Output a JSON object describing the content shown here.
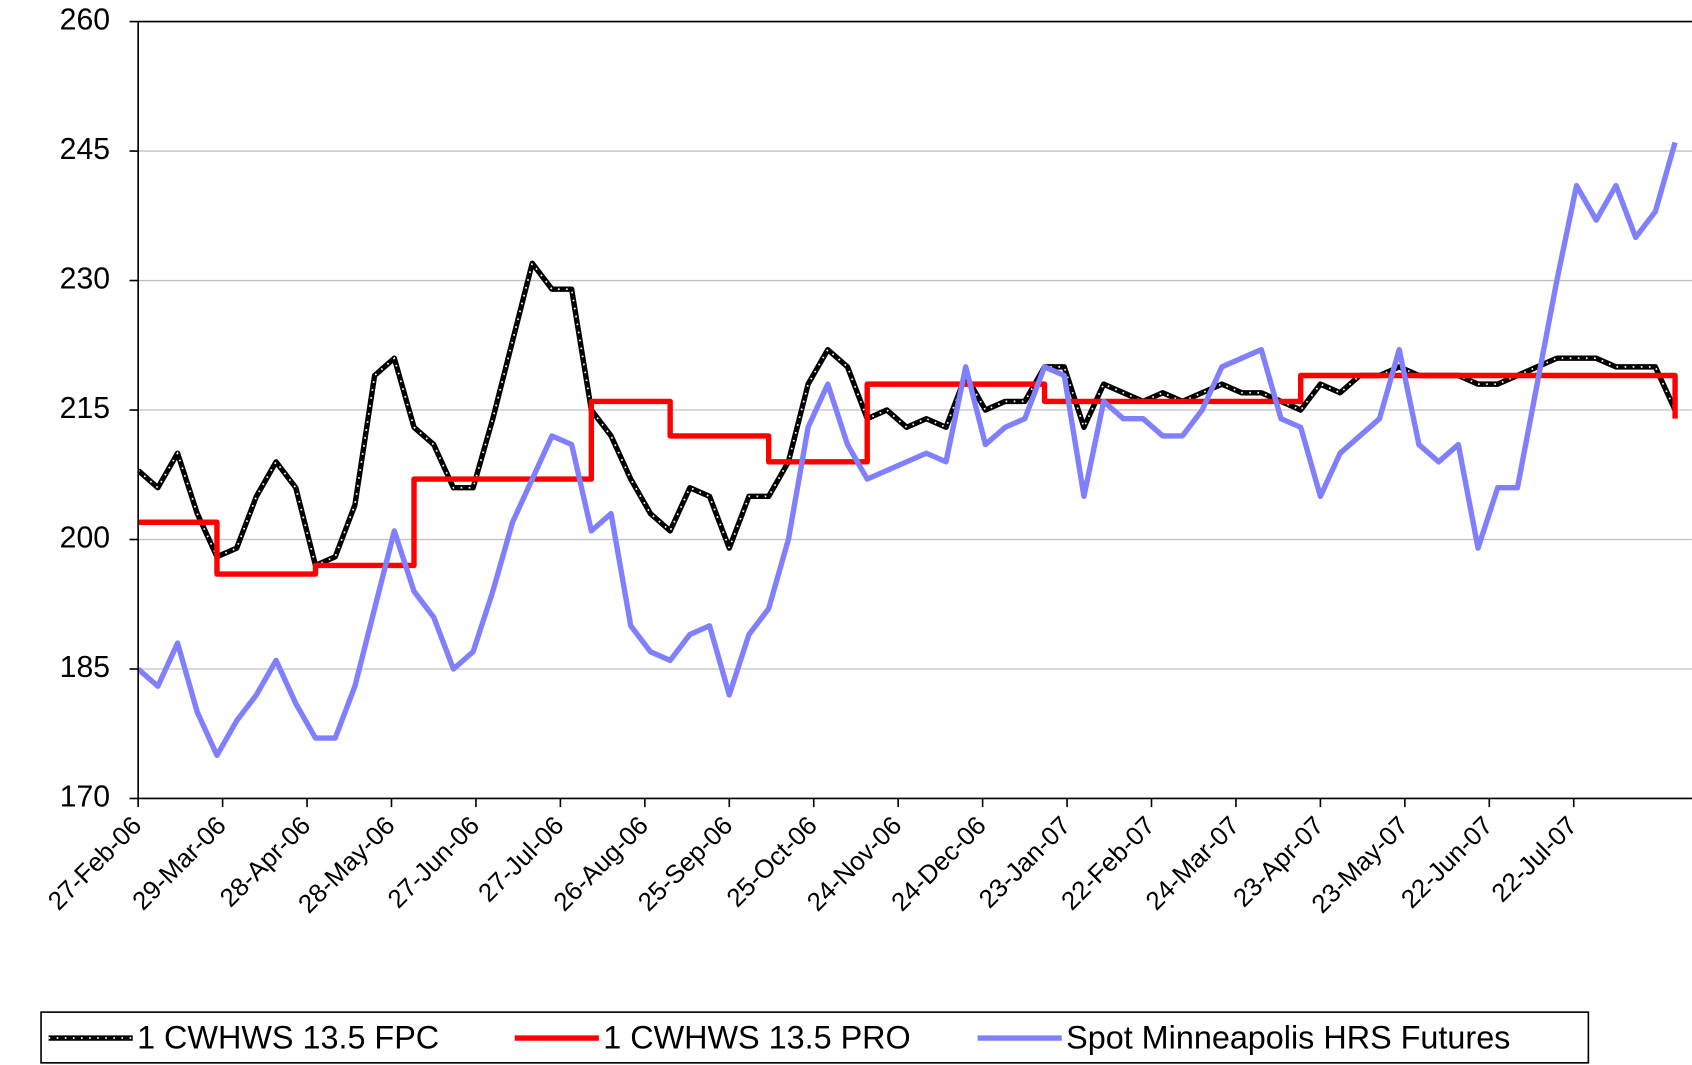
{
  "chart_data": {
    "type": "line",
    "x": [
      "2006-02-27",
      "2006-03-06",
      "2006-03-13",
      "2006-03-20",
      "2006-03-27",
      "2006-04-03",
      "2006-04-10",
      "2006-04-17",
      "2006-04-24",
      "2006-05-01",
      "2006-05-08",
      "2006-05-15",
      "2006-05-22",
      "2006-05-29",
      "2006-06-05",
      "2006-06-12",
      "2006-06-19",
      "2006-06-26",
      "2006-07-03",
      "2006-07-10",
      "2006-07-17",
      "2006-07-24",
      "2006-07-31",
      "2006-08-07",
      "2006-08-14",
      "2006-08-21",
      "2006-08-28",
      "2006-09-04",
      "2006-09-11",
      "2006-09-18",
      "2006-09-25",
      "2006-10-02",
      "2006-10-09",
      "2006-10-16",
      "2006-10-23",
      "2006-10-30",
      "2006-11-06",
      "2006-11-13",
      "2006-11-20",
      "2006-11-27",
      "2006-12-04",
      "2006-12-11",
      "2006-12-18",
      "2006-12-25",
      "2007-01-01",
      "2007-01-08",
      "2007-01-15",
      "2007-01-22",
      "2007-01-29",
      "2007-02-05",
      "2007-02-12",
      "2007-02-19",
      "2007-02-26",
      "2007-03-05",
      "2007-03-12",
      "2007-03-19",
      "2007-03-26",
      "2007-04-02",
      "2007-04-09",
      "2007-04-16",
      "2007-04-23",
      "2007-04-30",
      "2007-05-07",
      "2007-05-14",
      "2007-05-21",
      "2007-05-28",
      "2007-06-04",
      "2007-06-11",
      "2007-06-18",
      "2007-06-25",
      "2007-07-02",
      "2007-07-09",
      "2007-07-16",
      "2007-07-23",
      "2007-07-30",
      "2007-08-06",
      "2007-08-13",
      "2007-08-20",
      "2007-08-27"
    ],
    "series": [
      {
        "name": "1 CWHWS 13.5 FPC",
        "color": "#000000",
        "markers": true,
        "values": [
          208,
          206,
          210,
          203,
          198,
          199,
          205,
          209,
          206,
          197,
          198,
          204,
          219,
          221,
          213,
          211,
          206,
          206,
          214,
          223,
          232,
          229,
          229,
          215,
          212,
          207,
          203,
          201,
          206,
          205,
          199,
          205,
          205,
          209,
          218,
          222,
          220,
          214,
          215,
          213,
          214,
          213,
          219,
          215,
          216,
          216,
          220,
          220,
          213,
          218,
          217,
          216,
          217,
          216,
          217,
          218,
          217,
          217,
          216,
          215,
          218,
          217,
          219,
          219,
          220,
          219,
          219,
          219,
          218,
          218,
          219,
          220,
          221,
          221,
          221,
          220,
          220,
          220,
          215
        ]
      },
      {
        "name": "1 CWHWS 13.5 PRO",
        "color": "#ff0000",
        "step": true,
        "values": [
          202,
          202,
          202,
          202,
          196,
          196,
          196,
          196,
          196,
          197,
          197,
          197,
          197,
          197,
          207,
          207,
          207,
          207,
          207,
          207,
          207,
          207,
          207,
          216,
          216,
          216,
          216,
          212,
          212,
          212,
          212,
          212,
          209,
          209,
          209,
          209,
          209,
          218,
          218,
          218,
          218,
          218,
          218,
          218,
          218,
          218,
          216,
          216,
          216,
          216,
          216,
          216,
          216,
          216,
          216,
          216,
          216,
          216,
          216,
          219,
          219,
          219,
          219,
          219,
          219,
          219,
          219,
          219,
          219,
          219,
          219,
          219,
          219,
          219,
          219,
          219,
          219,
          219,
          214
        ]
      },
      {
        "name": "Spot Minneapolis HRS Futures",
        "color": "#8080ff",
        "values": [
          185,
          183,
          188,
          180,
          175,
          179,
          182,
          186,
          181,
          177,
          177,
          183,
          192,
          201,
          194,
          191,
          185,
          187,
          194,
          202,
          207,
          212,
          211,
          201,
          203,
          190,
          187,
          186,
          189,
          190,
          182,
          189,
          192,
          200,
          213,
          218,
          211,
          207,
          208,
          209,
          210,
          209,
          220,
          211,
          213,
          214,
          220,
          219,
          205,
          216,
          214,
          214,
          212,
          212,
          215,
          220,
          221,
          222,
          214,
          213,
          205,
          210,
          212,
          214,
          222,
          211,
          209,
          211,
          199,
          206,
          206,
          218,
          230,
          241,
          237,
          241,
          235,
          238,
          246
        ]
      }
    ],
    "xlim": [
      "2006-02-27",
      "2007-09-02"
    ],
    "xticks": [
      {
        "value": "2006-02-27",
        "label": "27-Feb-06"
      },
      {
        "value": "2006-03-29",
        "label": "29-Mar-06"
      },
      {
        "value": "2006-04-28",
        "label": "28-Apr-06"
      },
      {
        "value": "2006-05-28",
        "label": "28-May-06"
      },
      {
        "value": "2006-06-27",
        "label": "27-Jun-06"
      },
      {
        "value": "2006-07-27",
        "label": "27-Jul-06"
      },
      {
        "value": "2006-08-26",
        "label": "26-Aug-06"
      },
      {
        "value": "2006-09-25",
        "label": "25-Sep-06"
      },
      {
        "value": "2006-10-25",
        "label": "25-Oct-06"
      },
      {
        "value": "2006-11-24",
        "label": "24-Nov-06"
      },
      {
        "value": "2006-12-24",
        "label": "24-Dec-06"
      },
      {
        "value": "2007-01-23",
        "label": "23-Jan-07"
      },
      {
        "value": "2007-02-22",
        "label": "22-Feb-07"
      },
      {
        "value": "2007-03-24",
        "label": "24-Mar-07"
      },
      {
        "value": "2007-04-23",
        "label": "23-Apr-07"
      },
      {
        "value": "2007-05-23",
        "label": "23-May-07"
      },
      {
        "value": "2007-06-22",
        "label": "22-Jun-07"
      },
      {
        "value": "2007-07-22",
        "label": "22-Jul-07"
      }
    ],
    "ylim": [
      170,
      260
    ],
    "yticks": [
      170,
      185,
      200,
      215,
      230,
      245,
      260
    ],
    "grid": true,
    "legend": "bottom"
  }
}
